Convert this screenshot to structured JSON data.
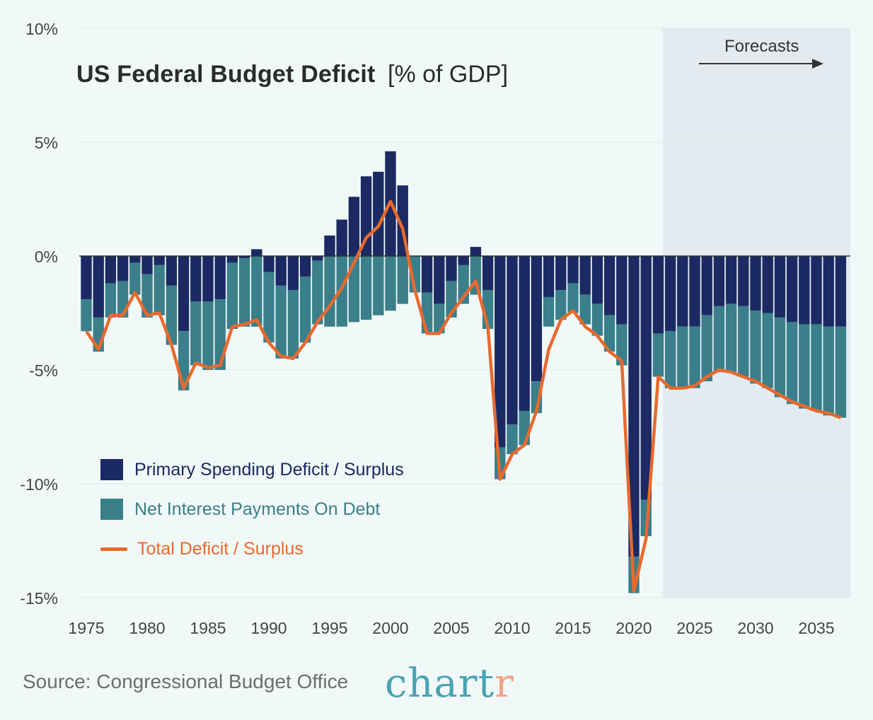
{
  "chart_data": {
    "type": "bar",
    "title": "US Federal Budget Deficit",
    "title_unit": "[% of GDP]",
    "annotation": "Forecasts",
    "source": "Source: Congressional Budget Office",
    "brand": {
      "main": "chart",
      "accent": "r"
    },
    "forecast_start_year": 2023,
    "ylim": [
      -15,
      10
    ],
    "yticks": [
      10,
      5,
      0,
      -5,
      -10,
      -15
    ],
    "ytick_labels": [
      "10%",
      "5%",
      "0%",
      "-5%",
      "-10%",
      "-15%"
    ],
    "xticks": [
      1975,
      1980,
      1985,
      1990,
      1995,
      2000,
      2005,
      2010,
      2015,
      2020,
      2025,
      2030,
      2035
    ],
    "grid": true,
    "legend_position": "bottom-left",
    "legend": [
      {
        "key": "primary",
        "label": "Primary Spending Deficit / Surplus"
      },
      {
        "key": "interest",
        "label": "Net Interest Payments On Debt"
      },
      {
        "key": "total",
        "label": "Total Deficit / Surplus"
      }
    ],
    "colors": {
      "primary": "#1b2a63",
      "interest": "#3a7f8a",
      "total": "#e8692e",
      "forecast_bg": "#e3ebf0",
      "background": "#f1f9f8",
      "brand_main": "#4aa3b5",
      "brand_accent": "#f0a487"
    },
    "years": [
      1975,
      1976,
      1977,
      1978,
      1979,
      1980,
      1981,
      1982,
      1983,
      1984,
      1985,
      1986,
      1987,
      1988,
      1989,
      1990,
      1991,
      1992,
      1993,
      1994,
      1995,
      1996,
      1997,
      1998,
      1999,
      2000,
      2001,
      2002,
      2003,
      2004,
      2005,
      2006,
      2007,
      2008,
      2009,
      2010,
      2011,
      2012,
      2013,
      2014,
      2015,
      2016,
      2017,
      2018,
      2019,
      2020,
      2021,
      2022,
      2023,
      2024,
      2025,
      2026,
      2027,
      2028,
      2029,
      2030,
      2031,
      2032,
      2033,
      2034,
      2035,
      2036,
      2037
    ],
    "series": [
      {
        "name": "Primary Spending Deficit / Surplus",
        "values": [
          -1.9,
          -2.7,
          -1.2,
          -1.1,
          -0.3,
          -0.8,
          -0.4,
          -1.3,
          -3.3,
          -2.0,
          -2.0,
          -1.9,
          -0.3,
          -0.1,
          0.3,
          -0.7,
          -1.3,
          -1.5,
          -0.9,
          -0.2,
          0.9,
          1.6,
          2.6,
          3.5,
          3.7,
          4.6,
          3.1,
          0.0,
          -1.6,
          -2.1,
          -1.1,
          -0.4,
          0.4,
          -1.5,
          -8.4,
          -7.4,
          -6.8,
          -5.5,
          -1.8,
          -1.5,
          -1.2,
          -1.7,
          -2.1,
          -2.6,
          -3.0,
          -13.2,
          -10.7,
          -3.4,
          -3.3,
          -3.1,
          -3.1,
          -2.6,
          -2.2,
          -2.1,
          -2.2,
          -2.4,
          -2.5,
          -2.7,
          -2.9,
          -3.0,
          -3.0,
          -3.1,
          -3.1
        ]
      },
      {
        "name": "Net Interest Payments On Debt",
        "values": [
          -1.4,
          -1.5,
          -1.5,
          -1.6,
          -1.4,
          -1.9,
          -2.2,
          -2.6,
          -2.6,
          -2.8,
          -3.0,
          -3.1,
          -2.9,
          -3.0,
          -3.1,
          -3.1,
          -3.2,
          -3.0,
          -2.9,
          -2.8,
          -3.1,
          -3.1,
          -2.9,
          -2.8,
          -2.6,
          -2.4,
          -2.1,
          -1.6,
          -1.8,
          -1.3,
          -1.6,
          -1.7,
          -1.7,
          -1.7,
          -1.4,
          -1.3,
          -1.5,
          -1.4,
          -1.3,
          -1.3,
          -1.3,
          -1.3,
          -1.4,
          -1.6,
          -1.8,
          -1.6,
          -1.6,
          -1.9,
          -2.5,
          -2.7,
          -2.7,
          -2.9,
          -2.9,
          -3.0,
          -3.1,
          -3.2,
          -3.3,
          -3.5,
          -3.6,
          -3.7,
          -3.8,
          -3.9,
          -4.0
        ]
      },
      {
        "name": "Total Deficit / Surplus",
        "values": [
          -3.3,
          -4.1,
          -2.6,
          -2.6,
          -1.6,
          -2.6,
          -2.5,
          -3.9,
          -5.8,
          -4.7,
          -4.9,
          -4.8,
          -3.1,
          -3.0,
          -2.8,
          -3.8,
          -4.4,
          -4.5,
          -3.8,
          -2.9,
          -2.2,
          -1.4,
          -0.3,
          0.8,
          1.3,
          2.4,
          1.2,
          -1.5,
          -3.4,
          -3.4,
          -2.5,
          -1.8,
          -1.1,
          -3.1,
          -9.8,
          -8.7,
          -8.3,
          -6.8,
          -4.1,
          -2.8,
          -2.4,
          -3.1,
          -3.5,
          -4.2,
          -4.6,
          -14.7,
          -12.4,
          -5.3,
          -5.8,
          -5.8,
          -5.7,
          -5.3,
          -5.0,
          -5.1,
          -5.3,
          -5.5,
          -5.8,
          -6.1,
          -6.4,
          -6.6,
          -6.8,
          -6.9,
          -7.1
        ]
      }
    ]
  }
}
